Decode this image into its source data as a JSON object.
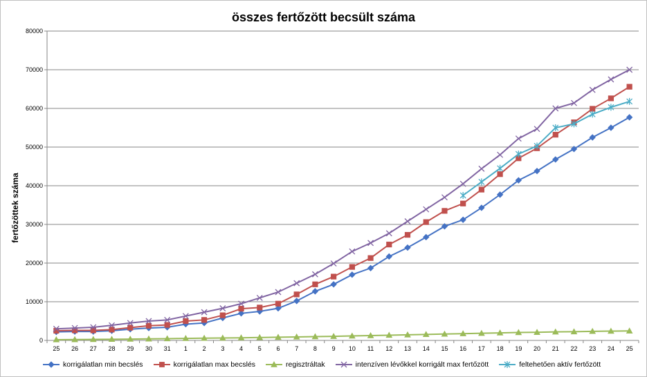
{
  "chart_data": {
    "type": "line",
    "title": "összes fertőzött becsült száma",
    "xlabel": "",
    "ylabel": "fertőzöttek száma",
    "ylim": [
      0,
      80000
    ],
    "yticks": [
      "0",
      "10000",
      "20000",
      "30000",
      "40000",
      "50000",
      "60000",
      "70000",
      "80000"
    ],
    "grid": true,
    "legend_position": "bottom",
    "categories": [
      "25",
      "26",
      "27",
      "28",
      "29",
      "30",
      "31",
      "1",
      "2",
      "3",
      "4",
      "5",
      "6",
      "7",
      "8",
      "9",
      "10",
      "11",
      "12",
      "13",
      "14",
      "15",
      "16",
      "17",
      "18",
      "19",
      "20",
      "21",
      "22",
      "23",
      "24",
      "25"
    ],
    "series": [
      {
        "name": "korrigálatlan min becslés",
        "color": "#4472c4",
        "marker": "diamond",
        "values": [
          2200,
          2300,
          2300,
          2500,
          2900,
          3200,
          3400,
          4200,
          4500,
          5800,
          7000,
          7500,
          8300,
          10200,
          12700,
          14500,
          17000,
          18700,
          21700,
          24000,
          26700,
          29500,
          31200,
          34300,
          37700,
          41400,
          43800,
          46800,
          49500,
          52500,
          55000,
          57700
        ]
      },
      {
        "name": "korrigálatlan max becslés",
        "color": "#c0504d",
        "marker": "square",
        "values": [
          2500,
          2600,
          2600,
          2800,
          3300,
          3800,
          4000,
          5000,
          5300,
          6500,
          8200,
          8500,
          9500,
          11900,
          14500,
          16500,
          19000,
          21300,
          24800,
          27300,
          30600,
          33500,
          35400,
          39000,
          43000,
          47100,
          49700,
          53200,
          56400,
          59900,
          62600,
          65600
        ]
      },
      {
        "name": "regisztráltak",
        "color": "#9bbb59",
        "marker": "triangle",
        "values": [
          190,
          220,
          260,
          300,
          340,
          400,
          450,
          520,
          580,
          620,
          680,
          750,
          820,
          900,
          980,
          1050,
          1150,
          1250,
          1350,
          1450,
          1550,
          1650,
          1750,
          1850,
          1950,
          2050,
          2100,
          2200,
          2250,
          2350,
          2400,
          2450
        ]
      },
      {
        "name": "intenzíven lévőkkel korrigált max fertőzött",
        "color": "#8064a2",
        "marker": "x",
        "values": [
          3000,
          3200,
          3400,
          3900,
          4500,
          5000,
          5300,
          6300,
          7300,
          8300,
          9500,
          11000,
          12500,
          14800,
          17100,
          19900,
          23000,
          25200,
          27700,
          30800,
          33900,
          37000,
          40500,
          44400,
          48000,
          52200,
          54700,
          60000,
          61400,
          64800,
          67500,
          70000
        ]
      },
      {
        "name": "feltehetően aktív fertőzött",
        "color": "#4bacc6",
        "marker": "star",
        "values": [
          null,
          null,
          null,
          null,
          null,
          null,
          null,
          null,
          null,
          null,
          null,
          null,
          null,
          null,
          null,
          null,
          null,
          null,
          null,
          null,
          null,
          null,
          37500,
          41000,
          44500,
          48200,
          50300,
          55000,
          56000,
          58500,
          60300,
          61800
        ]
      }
    ]
  }
}
